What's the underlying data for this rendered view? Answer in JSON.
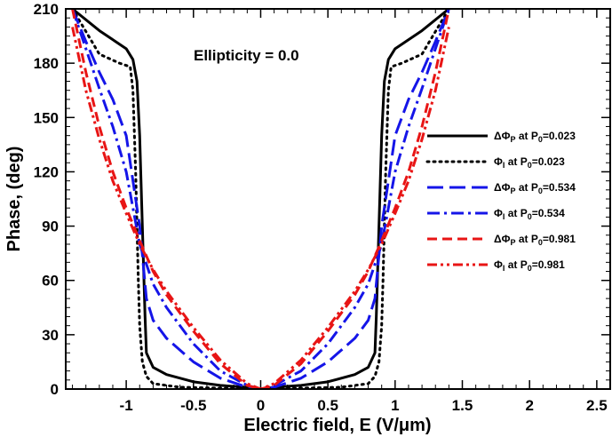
{
  "chart_data": {
    "type": "line",
    "title": "",
    "annotation": "Ellipticity = 0.0",
    "xlabel": "Electric field, E (V/μm)",
    "ylabel": "Phase, (deg)",
    "xlim": [
      -1.45,
      2.6
    ],
    "ylim": [
      0,
      210
    ],
    "xticks": [
      -1,
      -0.5,
      0,
      0.5,
      1,
      1.5,
      2,
      2.5
    ],
    "xtick_labels": [
      "-1",
      "-0.5",
      "0",
      "0.5",
      "1",
      "1.5",
      "2",
      "2.5"
    ],
    "yticks": [
      0,
      30,
      60,
      90,
      120,
      150,
      180,
      210
    ],
    "ytick_labels": [
      "0",
      "30",
      "60",
      "90",
      "120",
      "150",
      "180",
      "210"
    ],
    "legend_position": "right",
    "series": [
      {
        "legend": {
          "prefix": "ΔΦ",
          "sub1": "P",
          "mid": " at P",
          "sub2": "0",
          "suffix": "=0.023"
        },
        "color": "#000000",
        "dash": "solid",
        "x": [
          -1.4,
          -1.2,
          -1.0,
          -0.95,
          -0.92,
          -0.9,
          -0.88,
          -0.86,
          -0.85,
          -0.8,
          -0.7,
          -0.5,
          -0.3,
          -0.1,
          0,
          0.1,
          0.3,
          0.5,
          0.7,
          0.8,
          0.85,
          0.86,
          0.88,
          0.9,
          0.92,
          0.95,
          1.0,
          1.2,
          1.4
        ],
        "y": [
          210,
          198,
          188,
          182,
          170,
          140,
          90,
          40,
          20,
          12,
          8,
          4,
          2,
          1,
          0,
          1,
          2,
          4,
          8,
          12,
          20,
          40,
          90,
          140,
          170,
          182,
          188,
          198,
          210
        ]
      },
      {
        "legend": {
          "prefix": "Φ",
          "sub1": "I",
          "mid": " at P",
          "sub2": "0",
          "suffix": "=0.023"
        },
        "color": "#000000",
        "dash": "dotted",
        "x": [
          -1.4,
          -1.2,
          -1.05,
          -0.97,
          -0.95,
          -0.93,
          -0.92,
          -0.91,
          -0.9,
          -0.88,
          -0.85,
          -0.8,
          -0.6,
          0,
          0.6,
          0.8,
          0.85,
          0.88,
          0.9,
          0.91,
          0.92,
          0.93,
          0.95,
          0.97,
          1.05,
          1.2,
          1.4
        ],
        "y": [
          210,
          185,
          180,
          178,
          165,
          120,
          90,
          60,
          35,
          15,
          7,
          3,
          1,
          0,
          1,
          3,
          7,
          15,
          35,
          60,
          90,
          120,
          165,
          178,
          180,
          185,
          210
        ]
      },
      {
        "legend": {
          "prefix": "ΔΦ",
          "sub1": "P",
          "mid": " at P",
          "sub2": "0",
          "suffix": "=0.534"
        },
        "color": "#1515e8",
        "dash": "long-dash",
        "x": [
          -1.4,
          -1.3,
          -1.2,
          -1.1,
          -1.0,
          -0.9,
          -0.85,
          -0.8,
          -0.7,
          -0.5,
          -0.3,
          -0.1,
          0,
          0.1,
          0.3,
          0.5,
          0.7,
          0.8,
          0.85,
          0.9,
          1.0,
          1.1,
          1.2,
          1.3,
          1.4
        ],
        "y": [
          210,
          192,
          175,
          160,
          140,
          90,
          50,
          38,
          28,
          15,
          6,
          1,
          0,
          1,
          6,
          15,
          28,
          38,
          50,
          90,
          140,
          160,
          175,
          192,
          210
        ]
      },
      {
        "legend": {
          "prefix": "Φ",
          "sub1": "I",
          "mid": " at P",
          "sub2": "0",
          "suffix": "=0.534"
        },
        "color": "#1515e8",
        "dash": "dash-dot",
        "x": [
          -1.4,
          -1.3,
          -1.2,
          -1.1,
          -1.0,
          -0.9,
          -0.8,
          -0.7,
          -0.5,
          -0.3,
          -0.1,
          0,
          0.1,
          0.3,
          0.5,
          0.7,
          0.8,
          0.9,
          1.0,
          1.1,
          1.2,
          1.3,
          1.4
        ],
        "y": [
          210,
          188,
          166,
          145,
          120,
          80,
          58,
          45,
          25,
          10,
          2,
          0,
          2,
          10,
          25,
          45,
          58,
          80,
          120,
          145,
          166,
          188,
          210
        ]
      },
      {
        "legend": {
          "prefix": "ΔΦ",
          "sub1": "P",
          "mid": " at P",
          "sub2": "0",
          "suffix": "=0.981"
        },
        "color": "#e81515",
        "dash": "dashed",
        "x": [
          -1.4,
          -1.3,
          -1.2,
          -1.1,
          -1.0,
          -0.9,
          -0.8,
          -0.7,
          -0.5,
          -0.3,
          -0.1,
          0,
          0.1,
          0.3,
          0.5,
          0.7,
          0.8,
          0.9,
          1.0,
          1.1,
          1.2,
          1.3,
          1.4
        ],
        "y": [
          210,
          175,
          145,
          120,
          100,
          82,
          65,
          52,
          32,
          14,
          2,
          0,
          2,
          14,
          32,
          52,
          65,
          82,
          100,
          120,
          145,
          175,
          210
        ]
      },
      {
        "legend": {
          "prefix": "Φ",
          "sub1": "I",
          "mid": " at P",
          "sub2": "0",
          "suffix": "=0.981"
        },
        "color": "#e81515",
        "dash": "dash-dot-dot",
        "x": [
          -1.4,
          -1.3,
          -1.2,
          -1.1,
          -1.0,
          -0.9,
          -0.8,
          -0.7,
          -0.5,
          -0.3,
          -0.1,
          0,
          0.1,
          0.3,
          0.5,
          0.7,
          0.8,
          0.9,
          1.0,
          1.1,
          1.2,
          1.3,
          1.4
        ],
        "y": [
          200,
          165,
          138,
          115,
          97,
          80,
          66,
          54,
          34,
          16,
          3,
          0,
          3,
          16,
          34,
          54,
          66,
          80,
          97,
          115,
          138,
          165,
          200
        ]
      }
    ]
  }
}
